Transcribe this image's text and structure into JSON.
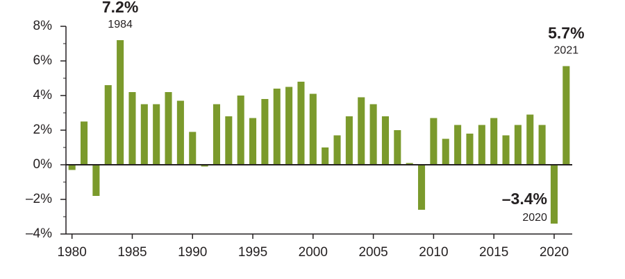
{
  "chart_data": {
    "type": "bar",
    "color": "#7b9a2c",
    "x": [
      1980,
      1981,
      1982,
      1983,
      1984,
      1985,
      1986,
      1987,
      1988,
      1989,
      1990,
      1991,
      1992,
      1993,
      1994,
      1995,
      1996,
      1997,
      1998,
      1999,
      2000,
      2001,
      2002,
      2003,
      2004,
      2005,
      2006,
      2007,
      2008,
      2009,
      2010,
      2011,
      2012,
      2013,
      2014,
      2015,
      2016,
      2017,
      2018,
      2019,
      2020,
      2021
    ],
    "values": [
      -0.3,
      2.5,
      -1.8,
      4.6,
      7.2,
      4.2,
      3.5,
      3.5,
      4.2,
      3.7,
      1.9,
      -0.1,
      3.5,
      2.8,
      4.0,
      2.7,
      3.8,
      4.4,
      4.5,
      4.8,
      4.1,
      1.0,
      1.7,
      2.8,
      3.9,
      3.5,
      2.8,
      2.0,
      0.1,
      -2.6,
      2.7,
      1.5,
      2.3,
      1.8,
      2.3,
      2.7,
      1.7,
      2.3,
      2.9,
      2.3,
      -3.4,
      5.7
    ],
    "xlim": [
      1979.5,
      2021.5
    ],
    "xticks": [
      1980,
      1985,
      1990,
      1995,
      2000,
      2005,
      2010,
      2015,
      2020
    ],
    "ylim": [
      -4,
      8
    ],
    "yticks": [
      {
        "value": -4,
        "label": "–4%"
      },
      {
        "value": -2,
        "label": "–2%"
      },
      {
        "value": 0,
        "label": "0%"
      },
      {
        "value": 2,
        "label": "2%"
      },
      {
        "value": 4,
        "label": "4%"
      },
      {
        "value": 6,
        "label": "6%"
      },
      {
        "value": 8,
        "label": "8%"
      }
    ],
    "yminorticks": [
      -3,
      -1,
      1,
      3,
      5,
      7
    ],
    "annotations": [
      {
        "x": 1984,
        "label": "7.2%"
      },
      {
        "x": 2020,
        "label": "–3.4%"
      },
      {
        "x": 2021,
        "label": "5.7%"
      }
    ]
  }
}
